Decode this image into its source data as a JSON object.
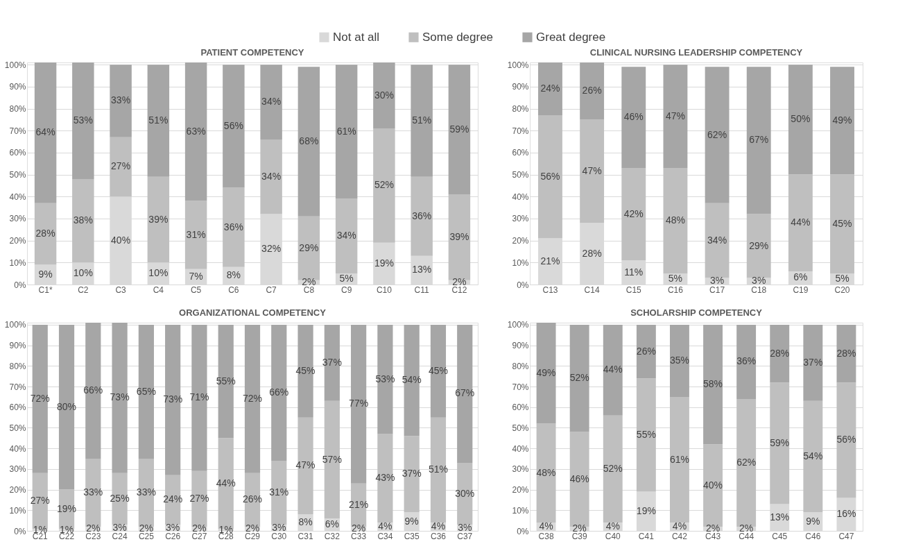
{
  "chart_data": [
    {
      "type": "bar",
      "title": "PATIENT COMPETENCY",
      "stacked": true,
      "legend": "top",
      "grid": "y",
      "categories": [
        "C1*",
        "C2",
        "C3",
        "C4",
        "C5",
        "C6",
        "C7",
        "C8",
        "C9",
        "C10",
        "C11",
        "C12"
      ],
      "ylim": [
        0,
        101
      ],
      "yticks": [
        {
          "value": 0,
          "label": "0%"
        },
        {
          "value": 10,
          "label": "10%"
        },
        {
          "value": 20,
          "label": "20%"
        },
        {
          "value": 30,
          "label": "30%"
        },
        {
          "value": 40,
          "label": "40%"
        },
        {
          "value": 50,
          "label": "50%"
        },
        {
          "value": 60,
          "label": "60%"
        },
        {
          "value": 70,
          "label": "70%"
        },
        {
          "value": 80,
          "label": "80%"
        },
        {
          "value": 90,
          "label": "90%"
        },
        {
          "value": 100,
          "label": "100%"
        }
      ],
      "series": [
        {
          "name": "Not at all",
          "color": "#d9d9d9",
          "values": [
            9,
            10,
            40,
            10,
            7,
            8,
            32,
            2,
            5,
            19,
            13,
            2
          ],
          "value_labels": [
            "9%",
            "10%",
            "40%",
            "10%",
            "7%",
            "8%",
            "32%",
            "2%",
            "5%",
            "19%",
            "13%",
            "2%"
          ]
        },
        {
          "name": "Some degree",
          "color": "#bfbfbf",
          "values": [
            28,
            38,
            27,
            39,
            31,
            36,
            34,
            29,
            34,
            52,
            36,
            39
          ],
          "value_labels": [
            "28%",
            "38%",
            "27%",
            "39%",
            "31%",
            "36%",
            "34%",
            "29%",
            "34%",
            "52%",
            "36%",
            "39%"
          ]
        },
        {
          "name": "Great degree",
          "color": "#a6a6a6",
          "values": [
            64,
            53,
            33,
            51,
            63,
            56,
            34,
            68,
            61,
            30,
            51,
            59
          ],
          "value_labels": [
            "64%",
            "53%",
            "33%",
            "51%",
            "63%",
            "56%",
            "34%",
            "68%",
            "61%",
            "30%",
            "51%",
            "59%"
          ]
        }
      ]
    },
    {
      "type": "bar",
      "title": "CLINICAL NURSING LEADERSHIP COMPETENCY",
      "stacked": true,
      "grid": "y",
      "categories": [
        "C13",
        "C14",
        "C15",
        "C16",
        "C17",
        "C18",
        "C19",
        "C20"
      ],
      "ylim": [
        0,
        101
      ],
      "yticks": [
        {
          "value": 0,
          "label": "0%"
        },
        {
          "value": 10,
          "label": "10%"
        },
        {
          "value": 20,
          "label": "20%"
        },
        {
          "value": 30,
          "label": "30%"
        },
        {
          "value": 40,
          "label": "40%"
        },
        {
          "value": 50,
          "label": "50%"
        },
        {
          "value": 60,
          "label": "60%"
        },
        {
          "value": 70,
          "label": "70%"
        },
        {
          "value": 80,
          "label": "80%"
        },
        {
          "value": 90,
          "label": "90%"
        },
        {
          "value": 100,
          "label": "100%"
        }
      ],
      "series": [
        {
          "name": "Not at all",
          "color": "#d9d9d9",
          "values": [
            21,
            28,
            11,
            5,
            3,
            3,
            6,
            5
          ],
          "value_labels": [
            "21%",
            "28%",
            "11%",
            "5%",
            "3%",
            "3%",
            "6%",
            "5%"
          ]
        },
        {
          "name": "Some degree",
          "color": "#bfbfbf",
          "values": [
            56,
            47,
            42,
            48,
            34,
            29,
            44,
            45
          ],
          "value_labels": [
            "56%",
            "47%",
            "42%",
            "48%",
            "34%",
            "29%",
            "44%",
            "45%"
          ]
        },
        {
          "name": "Great degree",
          "color": "#a6a6a6",
          "values": [
            24,
            26,
            46,
            47,
            62,
            67,
            50,
            49
          ],
          "value_labels": [
            "24%",
            "26%",
            "46%",
            "47%",
            "62%",
            "67%",
            "50%",
            "49%"
          ]
        }
      ]
    },
    {
      "type": "bar",
      "title": "ORGANIZATIONAL COMPETENCY",
      "stacked": true,
      "grid": "y",
      "categories": [
        "C21",
        "C22",
        "C23",
        "C24",
        "C25",
        "C26",
        "C27",
        "C28",
        "C29",
        "C30",
        "C31",
        "C32",
        "C33",
        "C34",
        "C35",
        "C36",
        "C37"
      ],
      "ylim": [
        0,
        101
      ],
      "yticks": [
        {
          "value": 0,
          "label": "0%"
        },
        {
          "value": 10,
          "label": "10%"
        },
        {
          "value": 20,
          "label": "20%"
        },
        {
          "value": 30,
          "label": "30%"
        },
        {
          "value": 40,
          "label": "40%"
        },
        {
          "value": 50,
          "label": "50%"
        },
        {
          "value": 60,
          "label": "60%"
        },
        {
          "value": 70,
          "label": "70%"
        },
        {
          "value": 80,
          "label": "80%"
        },
        {
          "value": 90,
          "label": "90%"
        },
        {
          "value": 100,
          "label": "100%"
        }
      ],
      "series": [
        {
          "name": "Not at all",
          "color": "#d9d9d9",
          "values": [
            1,
            1,
            2,
            3,
            2,
            3,
            2,
            1,
            2,
            3,
            8,
            6,
            2,
            4,
            9,
            4,
            3
          ],
          "value_labels": [
            "1%",
            "1%",
            "2%",
            "3%",
            "2%",
            "3%",
            "2%",
            "1%",
            "2%",
            "3%",
            "8%",
            "6%",
            "2%",
            "4%",
            "9%",
            "4%",
            "3%"
          ]
        },
        {
          "name": "Some degree",
          "color": "#bfbfbf",
          "values": [
            27,
            19,
            33,
            25,
            33,
            24,
            27,
            44,
            26,
            31,
            47,
            57,
            21,
            43,
            37,
            51,
            30
          ],
          "value_labels": [
            "27%",
            "19%",
            "33%",
            "25%",
            "33%",
            "24%",
            "27%",
            "44%",
            "26%",
            "31%",
            "47%",
            "57%",
            "21%",
            "43%",
            "37%",
            "51%",
            "30%"
          ]
        },
        {
          "name": "Great degree",
          "color": "#a6a6a6",
          "values": [
            72,
            80,
            66,
            73,
            65,
            73,
            71,
            55,
            72,
            66,
            45,
            37,
            77,
            53,
            54,
            45,
            67
          ],
          "value_labels": [
            "72%",
            "80%",
            "66%",
            "73%",
            "65%",
            "73%",
            "71%",
            "55%",
            "72%",
            "66%",
            "45%",
            "37%",
            "77%",
            "53%",
            "54%",
            "45%",
            "67%"
          ]
        }
      ]
    },
    {
      "type": "bar",
      "title": "SCHOLARSHIP COMPETENCY",
      "stacked": true,
      "grid": "y",
      "categories": [
        "C38",
        "C39",
        "C40",
        "C41",
        "C42",
        "C43",
        "C44",
        "C45",
        "C46",
        "C47"
      ],
      "ylim": [
        0,
        101
      ],
      "yticks": [
        {
          "value": 0,
          "label": "0%"
        },
        {
          "value": 10,
          "label": "10%"
        },
        {
          "value": 20,
          "label": "20%"
        },
        {
          "value": 30,
          "label": "30%"
        },
        {
          "value": 40,
          "label": "40%"
        },
        {
          "value": 50,
          "label": "50%"
        },
        {
          "value": 60,
          "label": "60%"
        },
        {
          "value": 70,
          "label": "70%"
        },
        {
          "value": 80,
          "label": "80%"
        },
        {
          "value": 90,
          "label": "90%"
        },
        {
          "value": 100,
          "label": "100%"
        }
      ],
      "series": [
        {
          "name": "Not at all",
          "color": "#d9d9d9",
          "values": [
            4,
            2,
            4,
            19,
            4,
            2,
            2,
            13,
            9,
            16
          ],
          "value_labels": [
            "4%",
            "2%",
            "4%",
            "19%",
            "4%",
            "2%",
            "2%",
            "13%",
            "9%",
            "16%"
          ]
        },
        {
          "name": "Some degree",
          "color": "#bfbfbf",
          "values": [
            48,
            46,
            52,
            55,
            61,
            40,
            62,
            59,
            54,
            56
          ],
          "value_labels": [
            "48%",
            "46%",
            "52%",
            "55%",
            "61%",
            "40%",
            "62%",
            "59%",
            "54%",
            "56%"
          ]
        },
        {
          "name": "Great degree",
          "color": "#a6a6a6",
          "values": [
            49,
            52,
            44,
            26,
            35,
            58,
            36,
            28,
            37,
            28
          ],
          "value_labels": [
            "49%",
            "52%",
            "44%",
            "26%",
            "35%",
            "58%",
            "36%",
            "28%",
            "37%",
            "28%"
          ]
        }
      ]
    }
  ]
}
